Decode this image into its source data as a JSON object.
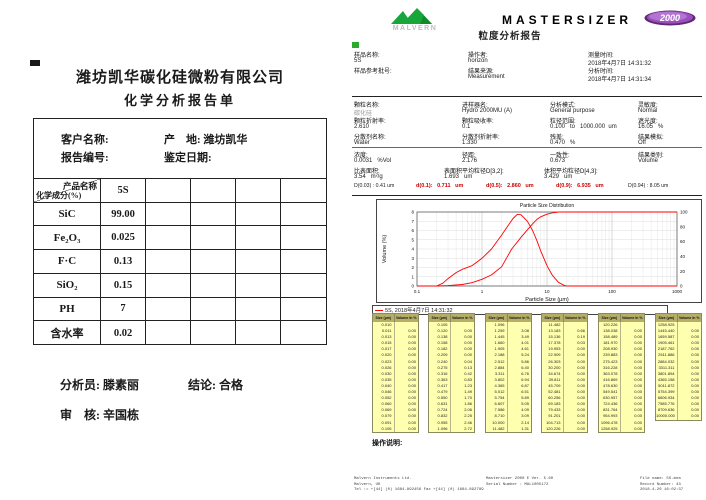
{
  "colors": {
    "accent_red": "#cc0000",
    "curve_red": "#ff0000",
    "table_yellow": "#ffffb0",
    "table_header": "#b5ae67",
    "malvern_green": "#17a63a",
    "badge_purple": "#8a3fae"
  },
  "left_page": {
    "company": "潍坊凯华碳化硅微粉有限公司",
    "title": "化学分析报告单",
    "info": {
      "customer_label": "客户名称:",
      "origin_label": "产　地: 潍坊凯华",
      "report_no_label": "报告编号:",
      "date_label": "鉴定日期:"
    },
    "table": {
      "corner_top": "产品名称",
      "corner_bottom": "化学成分(%)",
      "product": "5S",
      "rows": [
        {
          "name": "SiC",
          "value": "99.00"
        },
        {
          "name": "Fe₂O₃",
          "value": "0.025"
        },
        {
          "name": "F·C",
          "value": "0.13"
        },
        {
          "name": "SiO₂",
          "value": "0.15"
        },
        {
          "name": "PH",
          "value": "7"
        },
        {
          "name": "含水率",
          "value": "0.02"
        }
      ]
    },
    "footer": {
      "analyst": "分析员: 滕素丽",
      "conclusion": "结论: 合格",
      "reviewer": "审　核: 辛国栋"
    }
  },
  "right_page": {
    "brand": {
      "malvern": "MALVERN",
      "product": "MASTERSIZER",
      "model": "2000",
      "title": "粒度分析报告"
    },
    "sample": {
      "name_label": "样品名称:",
      "name": "5S",
      "ref_label": "样品参考批号:",
      "ref": "",
      "operator_label": "操作者:",
      "operator": "horizon",
      "source_label": "结果来源:",
      "source": "Measurement",
      "measured_label": "测量时间:",
      "measured": "2018年4月7日 14:31:32",
      "analysed_label": "分析时间:",
      "analysed": "2018年4月7日 14:31:34"
    },
    "params": [
      {
        "label": "颗粒名称:",
        "value": "碳化硅"
      },
      {
        "label": "进样器名:",
        "value": "Hydro 2000MU (A)"
      },
      {
        "label": "分析模式:",
        "value": "General purpose"
      },
      {
        "label": "灵敏度:",
        "value": "Normal"
      },
      {
        "label": "颗粒折射率:",
        "value": "2.610"
      },
      {
        "label": "颗粒吸收率:",
        "value": "0.1"
      },
      {
        "label": "粒径范围:",
        "value": "0.100   to   1000.000  um"
      },
      {
        "label": "遮光度:",
        "value": "16.05   %"
      },
      {
        "label": "分散剂名称:",
        "value": "Water"
      },
      {
        "label": "分散剂折射率:",
        "value": "1.330"
      },
      {
        "label": "残差:",
        "value": "0.470   %"
      },
      {
        "label": "结果模拟:",
        "value": "Off"
      }
    ],
    "results_row1": [
      {
        "label": "浓度:",
        "value": "0.0031   %Vol"
      },
      {
        "label": "径距:",
        "value": "2.176"
      },
      {
        "label": "一致性:",
        "value": "0.673"
      },
      {
        "label": "结果类别:",
        "value": "Volume"
      }
    ],
    "results_row2": [
      {
        "label": "比表面积:",
        "value": "3.54   m²/g"
      },
      {
        "label": "表面积平均粒径D[3,2]:",
        "value": "1.693   um"
      },
      {
        "label": "体积平均粒径D[4,3]:",
        "value": "3.429   um"
      }
    ],
    "d_values": [
      {
        "text": "D(0.03) : 0.41 um",
        "red": false
      },
      {
        "text": "d(0.1):   0.711   um",
        "red": true
      },
      {
        "text": "d(0.5):   2.860   um",
        "red": true
      },
      {
        "text": "d(0.9):   6.935   um",
        "red": true
      },
      {
        "text": "D(0.94) : 8.05 um",
        "red": false
      }
    ],
    "legend": "5S, 2018年4月7日 14:31:32",
    "operation_label": "操作说明:",
    "tables": [
      {
        "header_size": "Size (µm)",
        "header_vol": "Volume In %",
        "sizes": [
          "0.010",
          "0.011",
          "0.013",
          "0.015",
          "0.017",
          "0.020",
          "0.023",
          "0.026",
          "0.030",
          "0.035",
          "0.040",
          "0.046",
          "0.052",
          "0.060",
          "0.069",
          "0.079",
          "0.091",
          "0.105"
        ],
        "volumes": [
          "0.00",
          "0.00",
          "0.00",
          "0.00",
          "0.00",
          "0.00",
          "0.00",
          "0.00",
          "0.00",
          "0.00",
          "0.00",
          "0.00",
          "0.00",
          "0.00",
          "0.00",
          "0.00",
          "0.00"
        ]
      },
      {
        "header_size": "Size (µm)",
        "header_vol": "Volume In %",
        "sizes": [
          "0.105",
          "0.120",
          "0.138",
          "0.158",
          "0.182",
          "0.209",
          "0.240",
          "0.275",
          "0.316",
          "0.363",
          "0.417",
          "0.479",
          "0.550",
          "0.631",
          "0.724",
          "0.832",
          "0.955",
          "1.096"
        ],
        "volumes": [
          "0.00",
          "0.00",
          "0.00",
          "0.00",
          "0.00",
          "0.04",
          "0.13",
          "0.42",
          "0.83",
          "1.23",
          "1.49",
          "1.70",
          "1.86",
          "2.06",
          "2.25",
          "2.46",
          "2.72"
        ]
      },
      {
        "header_size": "Size (µm)",
        "header_vol": "Volume In %",
        "sizes": [
          "1.096",
          "1.259",
          "1.445",
          "1.660",
          "1.905",
          "2.188",
          "2.512",
          "2.884",
          "3.311",
          "3.802",
          "4.365",
          "5.012",
          "5.754",
          "6.607",
          "7.586",
          "8.710",
          "10.000",
          "11.482"
        ],
        "volumes": [
          "3.08",
          "3.49",
          "4.01",
          "4.61",
          "5.24",
          "5.86",
          "6.40",
          "6.76",
          "6.94",
          "6.87",
          "6.51",
          "5.89",
          "5.05",
          "4.09",
          "3.09",
          "2.14",
          "1.31"
        ]
      },
      {
        "header_size": "Size (µm)",
        "header_vol": "Volume In %",
        "sizes": [
          "11.482",
          "13.183",
          "15.136",
          "17.378",
          "19.953",
          "22.909",
          "26.303",
          "30.200",
          "34.674",
          "39.811",
          "45.709",
          "52.481",
          "60.256",
          "69.183",
          "79.433",
          "91.201",
          "104.713",
          "120.226"
        ],
        "volumes": [
          "0.66",
          "0.19",
          "0.03",
          "0.00",
          "0.00",
          "0.00",
          "0.00",
          "0.00",
          "0.00",
          "0.00",
          "0.00",
          "0.00",
          "0.00",
          "0.00",
          "0.00",
          "0.00",
          "0.00"
        ]
      },
      {
        "header_size": "Size (µm)",
        "header_vol": "Volume In %",
        "sizes": [
          "120.226",
          "138.038",
          "158.489",
          "181.970",
          "208.930",
          "239.883",
          "275.423",
          "316.228",
          "363.078",
          "416.869",
          "478.630",
          "549.541",
          "630.957",
          "724.436",
          "831.764",
          "954.993",
          "1096.478",
          "1258.925"
        ],
        "volumes": [
          "0.00",
          "0.00",
          "0.00",
          "0.00",
          "0.00",
          "0.00",
          "0.00",
          "0.00",
          "0.00",
          "0.00",
          "0.00",
          "0.00",
          "0.00",
          "0.00",
          "0.00",
          "0.00",
          "0.00"
        ]
      },
      {
        "header_size": "Size (µm)",
        "header_vol": "Volume In %",
        "sizes": [
          "1258.925",
          "1445.440",
          "1659.587",
          "1905.461",
          "2187.762",
          "2511.886",
          "2884.032",
          "3311.311",
          "3801.894",
          "4365.158",
          "5011.872",
          "5754.399",
          "6606.934",
          "7585.776",
          "8709.636",
          "10000.000"
        ],
        "volumes": [
          "0.00",
          "0.00",
          "0.00",
          "0.00",
          "0.00",
          "0.00",
          "0.00",
          "0.00",
          "0.00",
          "0.00",
          "0.00",
          "0.00",
          "0.00",
          "0.00",
          "0.00"
        ]
      }
    ],
    "footer": {
      "left": [
        "Malvern Instruments Ltd.",
        "Malvern, UK",
        "Tel := +[44] (0) 1684-892456 Fax +[44] (0) 1684-892789"
      ],
      "mid": [
        "Mastersizer 2000 E Ver. 5.60",
        "Serial Number : MAL1005172"
      ],
      "right": [
        "File name: 5S.mea",
        "Record Number: 43",
        "2018-4-26 16:02:37"
      ]
    }
  },
  "chart_data": {
    "type": "line",
    "title": "Particle Size Distribution",
    "xlabel": "Particle Size (µm)",
    "ylabel": "Volume (%)",
    "x_scale": "log",
    "xlim": [
      0.1,
      1000
    ],
    "ylim_left": [
      0,
      8
    ],
    "ylim_right": [
      0,
      100
    ],
    "x_ticks": [
      "0.1",
      "1",
      "10",
      "100",
      "1000"
    ],
    "y_ticks_left": [
      0,
      1,
      2,
      3,
      4,
      5,
      6,
      7,
      8
    ],
    "y_ticks_right": [
      0,
      20,
      40,
      60,
      80,
      100
    ],
    "grid": true,
    "legend_position": "bottom",
    "legend": "5S, 2018年4月7日 14:31:32",
    "series": [
      {
        "name": "volume-frequency",
        "axis": "left",
        "color": "#ff0000",
        "points": [
          [
            0.1,
            0
          ],
          [
            0.2,
            0
          ],
          [
            0.25,
            0.3
          ],
          [
            0.3,
            0.8
          ],
          [
            0.4,
            1.45
          ],
          [
            0.5,
            1.8
          ],
          [
            0.7,
            2.2
          ],
          [
            1.0,
            3.0
          ],
          [
            1.4,
            4.0
          ],
          [
            2.0,
            5.5
          ],
          [
            2.5,
            6.5
          ],
          [
            3.0,
            7.3
          ],
          [
            3.5,
            7.75
          ],
          [
            4.0,
            7.7
          ],
          [
            5.0,
            7.0
          ],
          [
            6.0,
            6.0
          ],
          [
            7.0,
            4.9
          ],
          [
            8.0,
            3.8
          ],
          [
            10,
            2.2
          ],
          [
            12,
            1.2
          ],
          [
            15,
            0.4
          ],
          [
            18,
            0.1
          ],
          [
            20,
            0
          ],
          [
            100,
            0
          ],
          [
            1000,
            0
          ]
        ]
      },
      {
        "name": "cumulative-volume",
        "axis": "right",
        "color": "#ff0000",
        "points": [
          [
            0.1,
            0
          ],
          [
            0.2,
            0
          ],
          [
            0.3,
            0.5
          ],
          [
            0.5,
            2
          ],
          [
            0.7,
            4.5
          ],
          [
            1.0,
            9
          ],
          [
            1.4,
            15
          ],
          [
            2.0,
            26
          ],
          [
            2.86,
            50
          ],
          [
            4.0,
            66
          ],
          [
            5.0,
            76
          ],
          [
            6.0,
            84
          ],
          [
            7.0,
            90
          ],
          [
            8.0,
            93.5
          ],
          [
            10,
            97
          ],
          [
            12,
            98.8
          ],
          [
            15,
            99.8
          ],
          [
            20,
            100
          ],
          [
            100,
            100
          ],
          [
            1000,
            100
          ]
        ]
      }
    ]
  }
}
